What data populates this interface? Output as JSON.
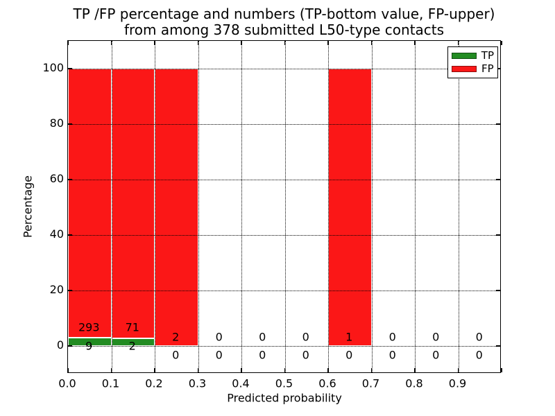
{
  "title": {
    "line1": "TP /FP percentage and numbers (TP-bottom value, FP-upper)",
    "line2": "from among 378 submitted L50-type contacts"
  },
  "chart_data": {
    "type": "bar",
    "stacked": true,
    "total_submitted": 378,
    "bin_edges": [
      0.0,
      0.1,
      0.2,
      0.3,
      0.4,
      0.5,
      0.6,
      0.7,
      0.8,
      0.9,
      1.0
    ],
    "bin_centers": [
      0.05,
      0.15,
      0.25,
      0.35,
      0.45,
      0.55,
      0.65,
      0.75,
      0.85,
      0.95
    ],
    "series": [
      {
        "name": "TP",
        "color": "#228b22",
        "counts": [
          9,
          2,
          0,
          0,
          0,
          0,
          0,
          0,
          0,
          0
        ],
        "percent": [
          2.98,
          2.74,
          0,
          0,
          0,
          0,
          0,
          0,
          0,
          0
        ]
      },
      {
        "name": "FP",
        "color": "#fb1717",
        "counts": [
          293,
          71,
          2,
          0,
          0,
          0,
          1,
          0,
          0,
          0
        ],
        "percent": [
          97.02,
          97.26,
          100,
          0,
          0,
          0,
          100,
          0,
          0,
          0
        ]
      }
    ],
    "xlabel": "Predicted probability",
    "ylabel": "Percentage",
    "xtick_labels": [
      "0.0",
      "0.1",
      "0.2",
      "0.3",
      "0.4",
      "0.5",
      "0.6",
      "0.7",
      "0.8",
      "0.9"
    ],
    "ytick_values": [
      0,
      20,
      40,
      60,
      80,
      100
    ],
    "ytick_labels": [
      "0",
      "20",
      "40",
      "60",
      "80",
      "100"
    ],
    "xlim": [
      0.0,
      1.0
    ],
    "ylim": [
      -10,
      110
    ],
    "grid": "dotted-black-both-axes",
    "legend": {
      "position": "upper right",
      "entries": [
        {
          "label": "TP",
          "color": "#228b22"
        },
        {
          "label": "FP",
          "color": "#fb1717"
        }
      ]
    }
  }
}
